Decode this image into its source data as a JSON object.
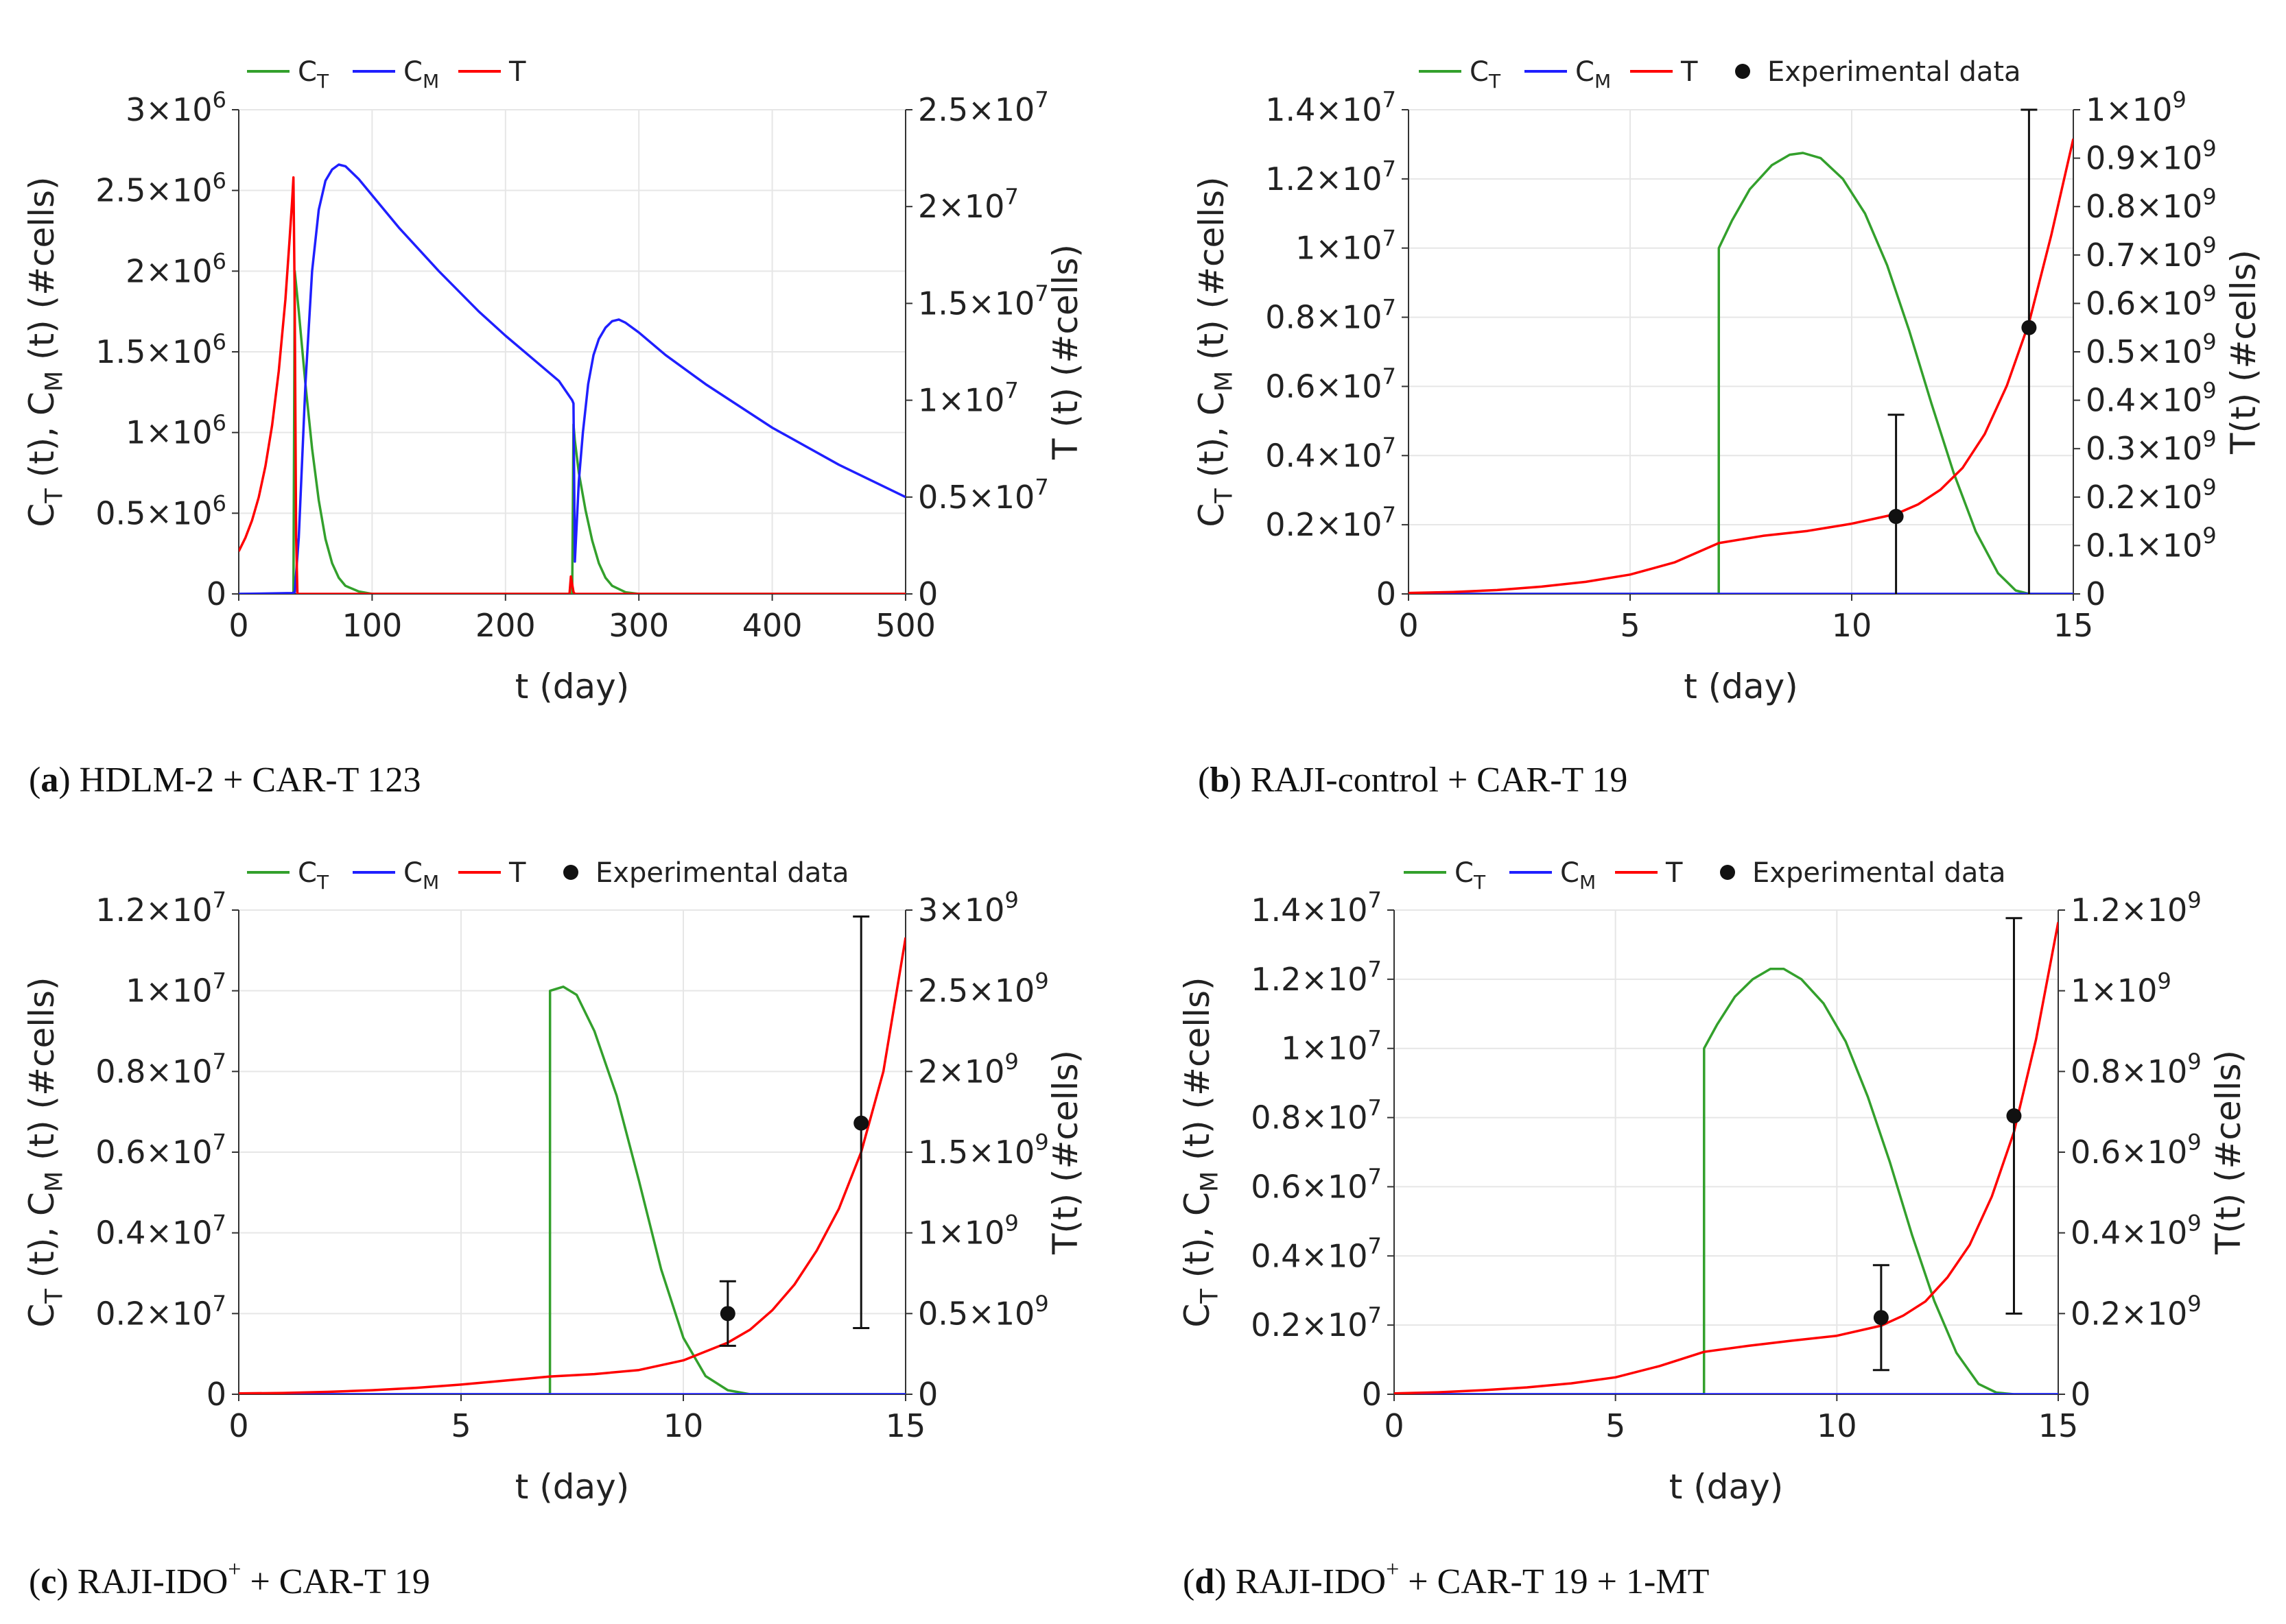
{
  "chart_data": [
    {
      "type": "line",
      "panel_label": "a",
      "caption": "HDLM-2 + CAR-T 123",
      "legend": [
        "C_T",
        "C_M",
        "T"
      ],
      "legend_labels": [
        {
          "main": "C",
          "sub": "T"
        },
        {
          "main": "C",
          "sub": "M"
        },
        {
          "main": "T",
          "sub": ""
        }
      ],
      "xlabel": "t (day)",
      "ylabel_left": "C_T (t), C_M (t) (#cells)",
      "ylabel_right": "T (t) (#cells)",
      "xlim": [
        0,
        500
      ],
      "xticks": [
        0,
        100,
        200,
        300,
        400,
        500
      ],
      "xtick_labels": [
        "0",
        "100",
        "200",
        "300",
        "400",
        "500"
      ],
      "ylim_left": [
        0,
        3000000
      ],
      "yticks_left": [
        0,
        500000,
        1000000,
        1500000,
        2000000,
        2500000,
        3000000
      ],
      "ytick_labels_left": [
        "0",
        "0.5×10^6",
        "1×10^6",
        "1.5×10^6",
        "2×10^6",
        "2.5×10^6",
        "3×10^6"
      ],
      "ylim_right": [
        0,
        25000000
      ],
      "yticks_right": [
        0,
        5000000,
        10000000,
        15000000,
        20000000,
        25000000
      ],
      "ytick_labels_right": [
        "0",
        "0.5×10^7",
        "1×10^7",
        "1.5×10^7",
        "2×10^7",
        "2.5×10^7"
      ],
      "series": [
        {
          "name": "C_T",
          "axis": "left",
          "color": "#33a02c",
          "x": [
            0,
            41,
            42,
            45,
            50,
            55,
            60,
            65,
            70,
            75,
            80,
            90,
            100,
            250,
            251,
            252,
            255,
            260,
            265,
            270,
            275,
            280,
            290,
            300,
            500
          ],
          "y": [
            0,
            0,
            2000000,
            1750000,
            1300000,
            900000,
            580000,
            340000,
            190000,
            100000,
            50000,
            15000,
            0,
            0,
            1050000,
            950000,
            750000,
            520000,
            330000,
            190000,
            100000,
            50000,
            10000,
            0,
            0
          ]
        },
        {
          "name": "C_M",
          "axis": "left",
          "color": "#1f1fff",
          "x": [
            0,
            40,
            42,
            45,
            50,
            55,
            60,
            65,
            70,
            75,
            80,
            90,
            100,
            120,
            150,
            180,
            200,
            220,
            240,
            250,
            251,
            252,
            255,
            258,
            262,
            266,
            270,
            275,
            280,
            285,
            290,
            300,
            320,
            350,
            400,
            450,
            500
          ],
          "y": [
            0,
            5000,
            10000,
            350000,
            1300000,
            2000000,
            2380000,
            2560000,
            2630000,
            2660000,
            2650000,
            2570000,
            2470000,
            2270000,
            2000000,
            1750000,
            1600000,
            1460000,
            1320000,
            1200000,
            1180000,
            200000,
            700000,
            1000000,
            1300000,
            1480000,
            1580000,
            1650000,
            1690000,
            1700000,
            1680000,
            1620000,
            1480000,
            1300000,
            1030000,
            800000,
            600000
          ]
        },
        {
          "name": "T",
          "axis": "right",
          "color": "#ff0000",
          "x": [
            0,
            5,
            10,
            15,
            20,
            25,
            30,
            35,
            38,
            40,
            41,
            42,
            43,
            44,
            50,
            100,
            200,
            248,
            249,
            250,
            251,
            252,
            300,
            500
          ],
          "y": [
            2200000,
            2900000,
            3800000,
            5000000,
            6600000,
            8700000,
            11500000,
            15200000,
            18200000,
            20300000,
            21500000,
            15000000,
            3000000,
            0,
            0,
            0,
            0,
            0,
            900000,
            500000,
            100000,
            0,
            0,
            0
          ]
        }
      ]
    },
    {
      "type": "line",
      "panel_label": "b",
      "caption": "RAJI-control + CAR-T 19",
      "legend": [
        "C_T",
        "C_M",
        "T",
        "Experimental data"
      ],
      "legend_labels": [
        {
          "main": "C",
          "sub": "T"
        },
        {
          "main": "C",
          "sub": "M"
        },
        {
          "main": "T",
          "sub": ""
        },
        {
          "main": "Experimental data",
          "sub": ""
        }
      ],
      "xlabel": "t (day)",
      "ylabel_left": "C_T (t), C_M (t) (#cells)",
      "ylabel_right": "T(t) (#cells)",
      "xlim": [
        0,
        15
      ],
      "xticks": [
        0,
        5,
        10,
        15
      ],
      "xtick_labels": [
        "0",
        "5",
        "10",
        "15"
      ],
      "ylim_left": [
        0,
        14000000
      ],
      "yticks_left": [
        0,
        2000000,
        4000000,
        6000000,
        8000000,
        10000000,
        12000000,
        14000000
      ],
      "ytick_labels_left": [
        "0",
        "0.2×10^7",
        "0.4×10^7",
        "0.6×10^7",
        "0.8×10^7",
        "1×10^7",
        "1.2×10^7",
        "1.4×10^7"
      ],
      "ylim_right": [
        0,
        1000000000
      ],
      "yticks_right": [
        0,
        100000000,
        200000000,
        300000000,
        400000000,
        500000000,
        600000000,
        700000000,
        800000000,
        900000000,
        1000000000
      ],
      "ytick_labels_right": [
        "0",
        "0.1×10^9",
        "0.2×10^9",
        "0.3×10^9",
        "0.4×10^9",
        "0.5×10^9",
        "0.6×10^9",
        "0.7×10^9",
        "0.8×10^9",
        "0.9×10^9",
        "1×10^9"
      ],
      "series": [
        {
          "name": "C_T",
          "axis": "left",
          "color": "#33a02c",
          "x": [
            0,
            7,
            7.001,
            7.3,
            7.7,
            8.2,
            8.6,
            8.9,
            9.3,
            9.8,
            10.3,
            10.8,
            11.3,
            11.8,
            12.3,
            12.8,
            13.3,
            13.7,
            14,
            15
          ],
          "y": [
            0,
            0,
            10000000,
            10800000,
            11700000,
            12400000,
            12700000,
            12750000,
            12600000,
            12000000,
            11000000,
            9500000,
            7600000,
            5500000,
            3500000,
            1800000,
            600000,
            100000,
            0,
            0
          ]
        },
        {
          "name": "C_M",
          "axis": "left",
          "color": "#1f1fff",
          "x": [
            0,
            15
          ],
          "y": [
            0,
            0
          ]
        },
        {
          "name": "T",
          "axis": "right",
          "color": "#ff0000",
          "x": [
            0,
            1,
            2,
            3,
            4,
            5,
            6,
            7,
            8,
            9,
            10,
            11,
            11.5,
            12,
            12.5,
            13,
            13.5,
            14,
            14.5,
            15
          ],
          "y": [
            2000000,
            4000000,
            8000000,
            15000000,
            25000000,
            40000000,
            65000000,
            105000000,
            120000000,
            130000000,
            145000000,
            165000000,
            185000000,
            215000000,
            260000000,
            330000000,
            430000000,
            560000000,
            740000000,
            940000000
          ]
        }
      ],
      "experimental_data": {
        "x": [
          11,
          14
        ],
        "y": [
          160000000,
          550000000
        ],
        "err_low": [
          0,
          0
        ],
        "err_high": [
          370000000,
          1000000000
        ]
      }
    },
    {
      "type": "line",
      "panel_label": "c",
      "caption": "RAJI-IDO+ + CAR-T 19",
      "legend": [
        "C_T",
        "C_M",
        "T",
        "Experimental data"
      ],
      "legend_labels": [
        {
          "main": "C",
          "sub": "T"
        },
        {
          "main": "C",
          "sub": "M"
        },
        {
          "main": "T",
          "sub": ""
        },
        {
          "main": "Experimental data",
          "sub": ""
        }
      ],
      "xlabel": "t (day)",
      "ylabel_left": "C_T (t), C_M (t) (#cells)",
      "ylabel_right": "T(t) (#cells)",
      "xlim": [
        0,
        15
      ],
      "xticks": [
        0,
        5,
        10,
        15
      ],
      "xtick_labels": [
        "0",
        "5",
        "10",
        "15"
      ],
      "ylim_left": [
        0,
        12000000
      ],
      "yticks_left": [
        0,
        2000000,
        4000000,
        6000000,
        8000000,
        10000000,
        12000000
      ],
      "ytick_labels_left": [
        "0",
        "0.2×10^7",
        "0.4×10^7",
        "0.6×10^7",
        "0.8×10^7",
        "1×10^7",
        "1.2×10^7"
      ],
      "ylim_right": [
        0,
        3000000000
      ],
      "yticks_right": [
        0,
        500000000,
        1000000000,
        1500000000,
        2000000000,
        2500000000,
        3000000000
      ],
      "ytick_labels_right": [
        "0",
        "0.5×10^9",
        "1×10^9",
        "1.5×10^9",
        "2×10^9",
        "2.5×10^9",
        "3×10^9"
      ],
      "series": [
        {
          "name": "C_T",
          "axis": "left",
          "color": "#33a02c",
          "x": [
            0,
            7,
            7.001,
            7.3,
            7.6,
            8,
            8.5,
            9,
            9.5,
            10,
            10.5,
            11,
            11.5,
            12,
            15
          ],
          "y": [
            0,
            0,
            10000000,
            10100000,
            9900000,
            9000000,
            7400000,
            5300000,
            3100000,
            1400000,
            450000,
            100000,
            0,
            0,
            0
          ]
        },
        {
          "name": "C_M",
          "axis": "left",
          "color": "#1f1fff",
          "x": [
            0,
            15
          ],
          "y": [
            0,
            0
          ]
        },
        {
          "name": "T",
          "axis": "right",
          "color": "#ff0000",
          "x": [
            0,
            1,
            2,
            3,
            4,
            5,
            6,
            7,
            8,
            9,
            10,
            11,
            11.5,
            12,
            12.5,
            13,
            13.5,
            14,
            14.5,
            15
          ],
          "y": [
            5000000,
            8000000,
            15000000,
            25000000,
            40000000,
            60000000,
            85000000,
            110000000,
            125000000,
            150000000,
            210000000,
            320000000,
            400000000,
            520000000,
            680000000,
            890000000,
            1150000000,
            1500000000,
            2000000000,
            2830000000
          ]
        }
      ],
      "experimental_data": {
        "x": [
          11,
          14
        ],
        "y": [
          500000000,
          1680000000
        ],
        "err_low": [
          300000000,
          410000000
        ],
        "err_high": [
          700000000,
          2960000000
        ]
      }
    },
    {
      "type": "line",
      "panel_label": "d",
      "caption": "RAJI-IDO+ + CAR-T 19 + 1-MT",
      "legend": [
        "C_T",
        "C_M",
        "T",
        "Experimental data"
      ],
      "legend_labels": [
        {
          "main": "C",
          "sub": "T"
        },
        {
          "main": "C",
          "sub": "M"
        },
        {
          "main": "T",
          "sub": ""
        },
        {
          "main": "Experimental data",
          "sub": ""
        }
      ],
      "xlabel": "t (day)",
      "ylabel_left": "C_T (t), C_M (t) (#cells)",
      "ylabel_right": "T(t) (#cells)",
      "xlim": [
        0,
        15
      ],
      "xticks": [
        0,
        5,
        10,
        15
      ],
      "xtick_labels": [
        "0",
        "5",
        "10",
        "15"
      ],
      "ylim_left": [
        0,
        14000000
      ],
      "yticks_left": [
        0,
        2000000,
        4000000,
        6000000,
        8000000,
        10000000,
        12000000,
        14000000
      ],
      "ytick_labels_left": [
        "0",
        "0.2×10^7",
        "0.4×10^7",
        "0.6×10^7",
        "0.8×10^7",
        "1×10^7",
        "1.2×10^7",
        "1.4×10^7"
      ],
      "ylim_right": [
        0,
        1200000000
      ],
      "yticks_right": [
        0,
        200000000,
        400000000,
        600000000,
        800000000,
        1000000000,
        1200000000
      ],
      "ytick_labels_right": [
        "0",
        "0.2×10^9",
        "0.4×10^9",
        "0.6×10^9",
        "0.8×10^9",
        "1×10^9",
        "1.2×10^9"
      ],
      "series": [
        {
          "name": "C_T",
          "axis": "left",
          "color": "#33a02c",
          "x": [
            0,
            7,
            7.001,
            7.3,
            7.7,
            8.1,
            8.5,
            8.8,
            9.2,
            9.7,
            10.2,
            10.7,
            11.2,
            11.7,
            12.2,
            12.7,
            13.2,
            13.6,
            14,
            15
          ],
          "y": [
            0,
            0,
            10000000,
            10700000,
            11500000,
            12000000,
            12300000,
            12300000,
            12000000,
            11300000,
            10200000,
            8600000,
            6700000,
            4600000,
            2700000,
            1200000,
            300000,
            50000,
            0,
            0
          ]
        },
        {
          "name": "C_M",
          "axis": "left",
          "color": "#1f1fff",
          "x": [
            0,
            15
          ],
          "y": [
            0,
            0
          ]
        },
        {
          "name": "T",
          "axis": "right",
          "color": "#ff0000",
          "x": [
            0,
            1,
            2,
            3,
            4,
            5,
            6,
            7,
            8,
            9,
            10,
            11,
            11.5,
            12,
            12.5,
            13,
            13.5,
            14,
            14.5,
            15
          ],
          "y": [
            2000000,
            5000000,
            10000000,
            17000000,
            27000000,
            42000000,
            70000000,
            105000000,
            120000000,
            133000000,
            145000000,
            170000000,
            195000000,
            230000000,
            290000000,
            370000000,
            490000000,
            650000000,
            880000000,
            1170000000
          ]
        }
      ],
      "experimental_data": {
        "x": [
          11,
          14
        ],
        "y": [
          190000000,
          690000000
        ],
        "err_low": [
          60000000,
          200000000
        ],
        "err_high": [
          320000000,
          1180000000
        ]
      }
    }
  ]
}
